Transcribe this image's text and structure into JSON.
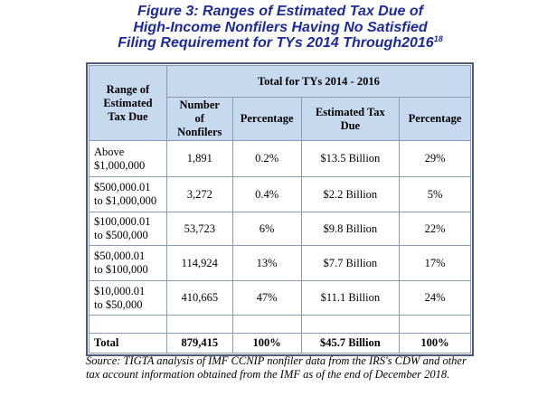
{
  "title": {
    "lines": [
      "Figure 3:  Ranges of Estimated Tax Due of",
      "High-Income Nonfilers Having No Satisfied",
      "Filing Requirement for TYs 2014 Through2016"
    ],
    "footnote": "18"
  },
  "table": {
    "header": {
      "range": "Range of\nEstimated\nTax Due",
      "group": "Total for TYs 2014 - 2016",
      "columns": [
        "Number\nof\nNonfilers",
        "Percentage",
        "Estimated Tax\nDue",
        "Percentage"
      ]
    },
    "rows": [
      [
        "Above\n$1,000,000",
        "1,891",
        "0.2%",
        "$13.5 Billion",
        "29%"
      ],
      [
        "$500,000.01\nto $1,000,000",
        "3,272",
        "0.4%",
        "$2.2 Billion",
        "5%"
      ],
      [
        "$100,000.01\nto $500,000",
        "53,723",
        "6%",
        "$9.8 Billion",
        "22%"
      ],
      [
        "$50,000.01\nto $100,000",
        "114,924",
        "13%",
        "$7.7 Billion",
        "17%"
      ],
      [
        "$10,000.01\nto $50,000",
        "410,665",
        "47%",
        "$11.1 Billion",
        "24%"
      ]
    ],
    "total": [
      "Total",
      "879,415",
      "100%",
      "$45.7 Billion",
      "100%"
    ]
  },
  "source": "Source:  TIGTA analysis of IMF CCNIP nonfiler data from the IRS's CDW and other tax account information obtained from the IMF as of the end of December 2018."
}
